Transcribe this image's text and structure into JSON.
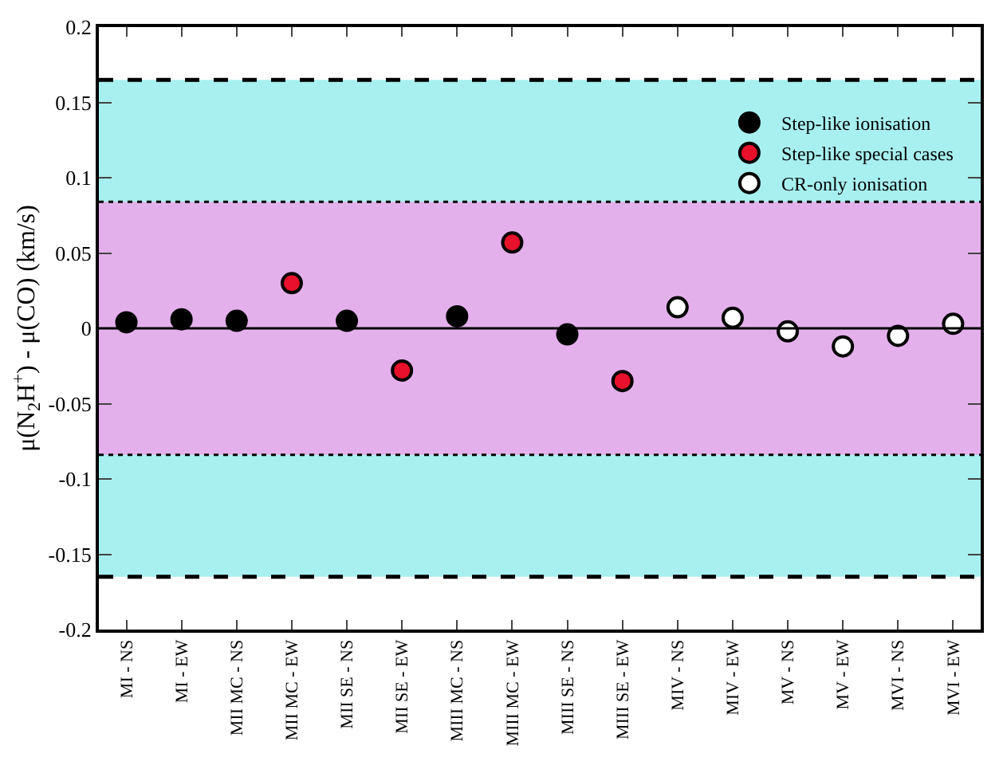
{
  "chart_data": {
    "type": "scatter",
    "ylabel": "μ(N$_{2}$H$^{+}$) - μ(CO) (km/s)",
    "categories": [
      "MI - NS",
      "MI - EW",
      "MII MC - NS",
      "MII MC - EW",
      "MII SE - NS",
      "MII SE - EW",
      "MIII MC - NS",
      "MIII MC - EW",
      "MIII SE - NS",
      "MIII SE - EW",
      "MIV - NS",
      "MIV - EW",
      "MV - NS",
      "MV - EW",
      "MVI - NS",
      "MVI - EW"
    ],
    "series": [
      {
        "name": "Step-like ionisation",
        "color": "#000000",
        "values": [
          0.004,
          0.006,
          0.005,
          null,
          0.005,
          null,
          0.008,
          null,
          -0.004,
          null,
          null,
          null,
          null,
          null,
          null,
          null
        ]
      },
      {
        "name": "Step-like special cases",
        "color": "#e8102a",
        "values": [
          null,
          null,
          null,
          0.03,
          null,
          -0.028,
          null,
          0.057,
          null,
          -0.035,
          null,
          null,
          null,
          null,
          null,
          null
        ]
      },
      {
        "name": "CR-only ionisation",
        "color": "#ffffff",
        "values": [
          null,
          null,
          null,
          null,
          null,
          null,
          null,
          null,
          null,
          null,
          0.014,
          0.007,
          -0.002,
          -0.012,
          -0.005,
          0.003
        ]
      }
    ],
    "ylim": [
      -0.2,
      0.2
    ],
    "yticks": [
      -0.2,
      -0.15,
      -0.1,
      -0.05,
      0,
      0.05,
      0.1,
      0.15,
      0.2
    ],
    "bands": [
      {
        "axis": "y",
        "from": -0.165,
        "to": 0.165,
        "color": "#a8f0f0"
      },
      {
        "axis": "y",
        "from": -0.084,
        "to": 0.084,
        "color": "#e4b0ec"
      }
    ],
    "ref_lines": [
      {
        "axis": "y",
        "value": 0.165,
        "line_style": "dashed",
        "color": "#000000"
      },
      {
        "axis": "y",
        "value": -0.165,
        "line_style": "dashed",
        "color": "#000000"
      },
      {
        "axis": "y",
        "value": 0.084,
        "line_style": "dotted",
        "color": "#000000"
      },
      {
        "axis": "y",
        "value": -0.084,
        "line_style": "dotted",
        "color": "#000000"
      },
      {
        "axis": "y",
        "value": 0,
        "line_style": "solid",
        "color": "#000000"
      }
    ],
    "marker": "circle",
    "legend": "top right",
    "grid": false
  }
}
